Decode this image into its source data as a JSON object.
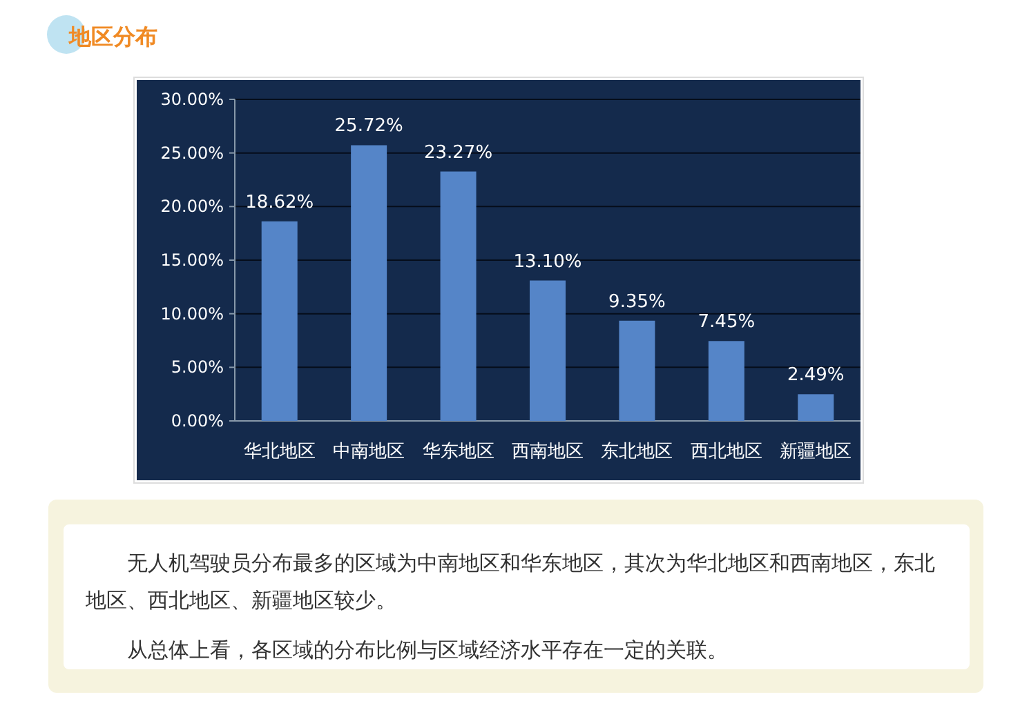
{
  "chart_data": {
    "type": "bar",
    "title": "地区分布",
    "categories": [
      "华北地区",
      "中南地区",
      "华东地区",
      "西南地区",
      "东北地区",
      "西北地区",
      "新疆地区"
    ],
    "values": [
      18.62,
      25.72,
      23.27,
      13.1,
      9.35,
      7.45,
      2.49
    ],
    "value_labels": [
      "18.62%",
      "25.72%",
      "23.27%",
      "13.10%",
      "9.35%",
      "7.45%",
      "2.49%"
    ],
    "color": "#5585c8",
    "ylim": [
      0,
      30
    ],
    "yticks": [
      {
        "value": 0,
        "label": "0.00%"
      },
      {
        "value": 5,
        "label": "5.00%"
      },
      {
        "value": 10,
        "label": "10.00%"
      },
      {
        "value": 15,
        "label": "15.00%"
      },
      {
        "value": 20,
        "label": "20.00%"
      },
      {
        "value": 25,
        "label": "25.00%"
      },
      {
        "value": 30,
        "label": "30.00%"
      }
    ],
    "grid": "y",
    "annotations": [
      "无人机驾驶员分布最多的区域为中南地区和华东地区，其次为华北地区和西南地区，东北地区、西北地区、新疆地区较少。",
      "从总体上看，各区域的分布比例与区域经济水平存在一定的关联。"
    ]
  }
}
